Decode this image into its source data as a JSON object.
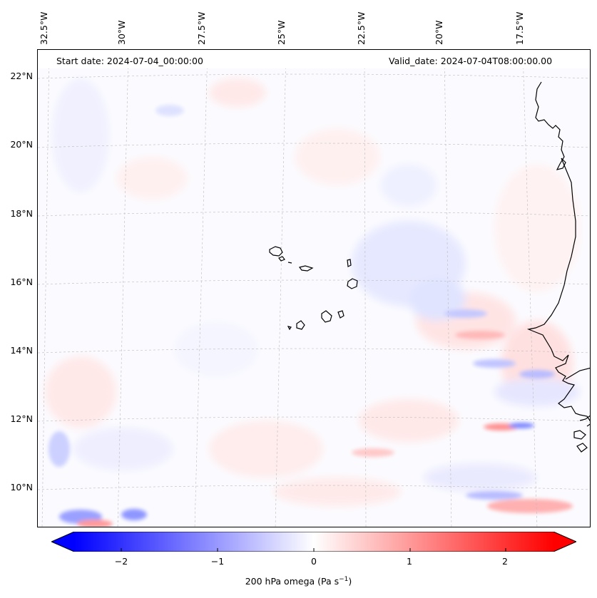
{
  "header": {
    "start_date": "Start date: 2024-07-04_00:00:00",
    "valid_date": "Valid_date: 2024-07-04T08:00:00.00"
  },
  "longitude_labels": [
    "32.5°W",
    "30°W",
    "27.5°W",
    "25°W",
    "22.5°W",
    "20°W",
    "17.5°W"
  ],
  "latitude_labels": [
    "22°N",
    "20°N",
    "18°N",
    "16°N",
    "14°N",
    "12°N",
    "10°N"
  ],
  "colorbar": {
    "ticks": [
      "−2",
      "−1",
      "0",
      "1",
      "2"
    ],
    "label": "200 hPa omega (Pa s",
    "label_exponent": "−1",
    "label_close": ")",
    "min": -2.6,
    "max": 2.6,
    "colors": {
      "negative": "#0000ff",
      "zero": "#ffffff",
      "positive": "#ff0000"
    }
  },
  "map": {
    "variable": "200 hPa omega",
    "extent": {
      "lon": [
        -33,
        -16.5
      ],
      "lat": [
        9,
        22.8
      ]
    },
    "coastline_color": "#000000",
    "gridline_color": "#bbbbbb"
  }
}
